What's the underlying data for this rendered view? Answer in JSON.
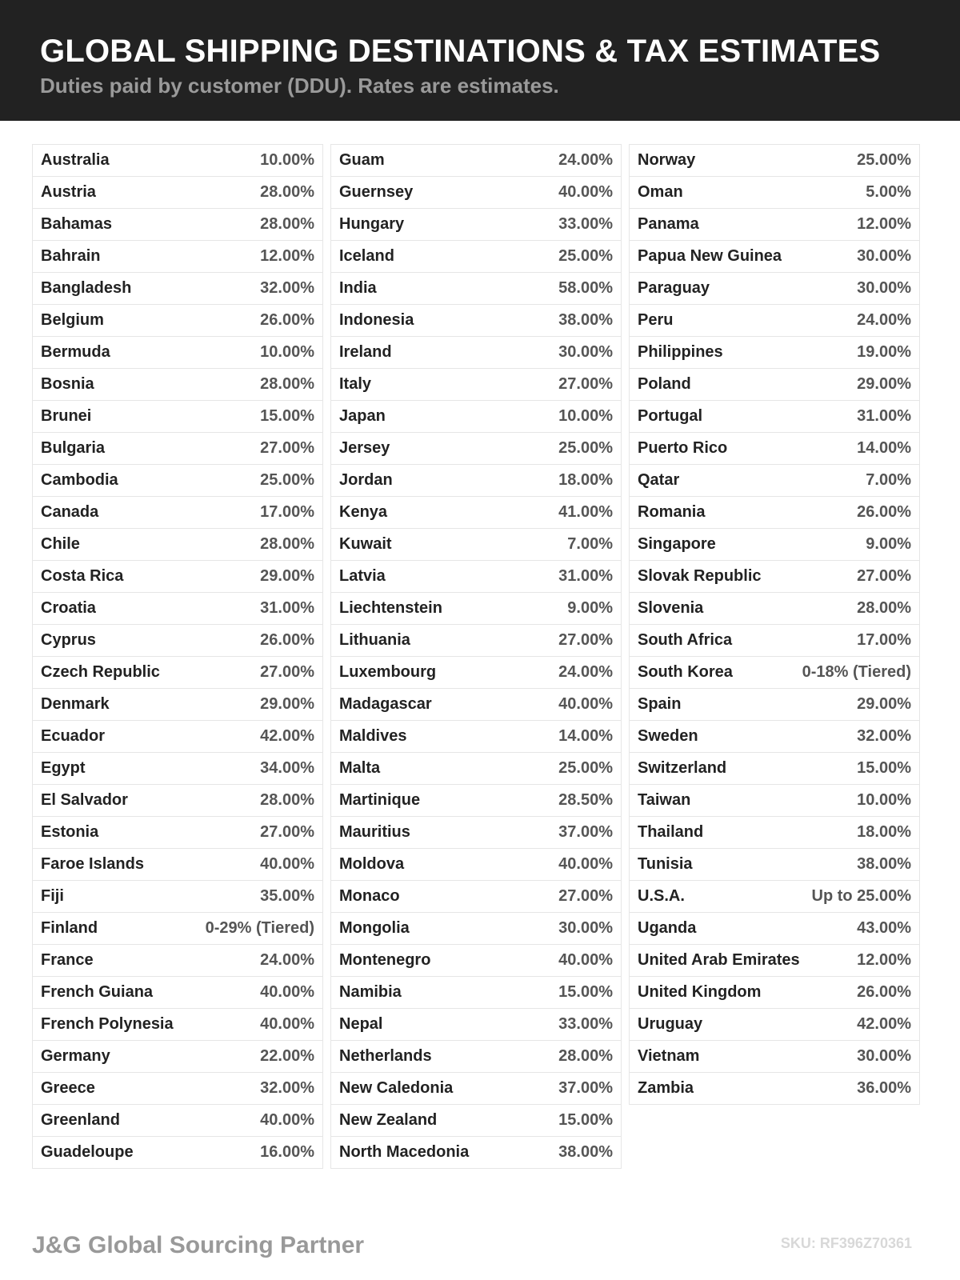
{
  "header": {
    "title": "GLOBAL SHIPPING DESTINATIONS & TAX ESTIMATES",
    "subtitle": "Duties paid by customer (DDU). Rates are estimates."
  },
  "columns": [
    [
      [
        "Australia",
        "10.00%"
      ],
      [
        "Austria",
        "28.00%"
      ],
      [
        "Bahamas",
        "28.00%"
      ],
      [
        "Bahrain",
        "12.00%"
      ],
      [
        "Bangladesh",
        "32.00%"
      ],
      [
        "Belgium",
        "26.00%"
      ],
      [
        "Bermuda",
        "10.00%"
      ],
      [
        "Bosnia",
        "28.00%"
      ],
      [
        "Brunei",
        "15.00%"
      ],
      [
        "Bulgaria",
        "27.00%"
      ],
      [
        "Cambodia",
        "25.00%"
      ],
      [
        "Canada",
        "17.00%"
      ],
      [
        "Chile",
        "28.00%"
      ],
      [
        "Costa Rica",
        "29.00%"
      ],
      [
        "Croatia",
        "31.00%"
      ],
      [
        "Cyprus",
        "26.00%"
      ],
      [
        "Czech Republic",
        "27.00%"
      ],
      [
        "Denmark",
        "29.00%"
      ],
      [
        "Ecuador",
        "42.00%"
      ],
      [
        "Egypt",
        "34.00%"
      ],
      [
        "El Salvador",
        "28.00%"
      ],
      [
        "Estonia",
        "27.00%"
      ],
      [
        "Faroe Islands",
        "40.00%"
      ],
      [
        "Fiji",
        "35.00%"
      ],
      [
        "Finland",
        "0-29% (Tiered)"
      ],
      [
        "France",
        "24.00%"
      ],
      [
        "French Guiana",
        "40.00%"
      ],
      [
        "French Polynesia",
        "40.00%"
      ],
      [
        "Germany",
        "22.00%"
      ],
      [
        "Greece",
        "32.00%"
      ],
      [
        "Greenland",
        "40.00%"
      ],
      [
        "Guadeloupe",
        "16.00%"
      ]
    ],
    [
      [
        "Guam",
        "24.00%"
      ],
      [
        "Guernsey",
        "40.00%"
      ],
      [
        "Hungary",
        "33.00%"
      ],
      [
        "Iceland",
        "25.00%"
      ],
      [
        "India",
        "58.00%"
      ],
      [
        "Indonesia",
        "38.00%"
      ],
      [
        "Ireland",
        "30.00%"
      ],
      [
        "Italy",
        "27.00%"
      ],
      [
        "Japan",
        "10.00%"
      ],
      [
        "Jersey",
        "25.00%"
      ],
      [
        "Jordan",
        "18.00%"
      ],
      [
        "Kenya",
        "41.00%"
      ],
      [
        "Kuwait",
        "7.00%"
      ],
      [
        "Latvia",
        "31.00%"
      ],
      [
        "Liechtenstein",
        "9.00%"
      ],
      [
        "Lithuania",
        "27.00%"
      ],
      [
        "Luxembourg",
        "24.00%"
      ],
      [
        "Madagascar",
        "40.00%"
      ],
      [
        "Maldives",
        "14.00%"
      ],
      [
        "Malta",
        "25.00%"
      ],
      [
        "Martinique",
        "28.50%"
      ],
      [
        "Mauritius",
        "37.00%"
      ],
      [
        "Moldova",
        "40.00%"
      ],
      [
        "Monaco",
        "27.00%"
      ],
      [
        "Mongolia",
        "30.00%"
      ],
      [
        "Montenegro",
        "40.00%"
      ],
      [
        "Namibia",
        "15.00%"
      ],
      [
        "Nepal",
        "33.00%"
      ],
      [
        "Netherlands",
        "28.00%"
      ],
      [
        "New Caledonia",
        "37.00%"
      ],
      [
        "New Zealand",
        "15.00%"
      ],
      [
        "North Macedonia",
        "38.00%"
      ]
    ],
    [
      [
        "Norway",
        "25.00%"
      ],
      [
        "Oman",
        "5.00%"
      ],
      [
        "Panama",
        "12.00%"
      ],
      [
        "Papua New Guinea",
        "30.00%"
      ],
      [
        "Paraguay",
        "30.00%"
      ],
      [
        "Peru",
        "24.00%"
      ],
      [
        "Philippines",
        "19.00%"
      ],
      [
        "Poland",
        "29.00%"
      ],
      [
        "Portugal",
        "31.00%"
      ],
      [
        "Puerto Rico",
        "14.00%"
      ],
      [
        "Qatar",
        "7.00%"
      ],
      [
        "Romania",
        "26.00%"
      ],
      [
        "Singapore",
        "9.00%"
      ],
      [
        "Slovak Republic",
        "27.00%"
      ],
      [
        "Slovenia",
        "28.00%"
      ],
      [
        "South Africa",
        "17.00%"
      ],
      [
        "South Korea",
        "0-18% (Tiered)"
      ],
      [
        "Spain",
        "29.00%"
      ],
      [
        "Sweden",
        "32.00%"
      ],
      [
        "Switzerland",
        "15.00%"
      ],
      [
        "Taiwan",
        "10.00%"
      ],
      [
        "Thailand",
        "18.00%"
      ],
      [
        "Tunisia",
        "38.00%"
      ],
      [
        "U.S.A.",
        "Up to 25.00%"
      ],
      [
        "Uganda",
        "43.00%"
      ],
      [
        "United Arab Emirates",
        "12.00%"
      ],
      [
        "United Kingdom",
        "26.00%"
      ],
      [
        "Uruguay",
        "42.00%"
      ],
      [
        "Vietnam",
        "30.00%"
      ],
      [
        "Zambia",
        "36.00%"
      ]
    ]
  ],
  "footer": {
    "brand": "J&G Global Sourcing Partner",
    "sku": "SKU: RF396Z70361"
  }
}
